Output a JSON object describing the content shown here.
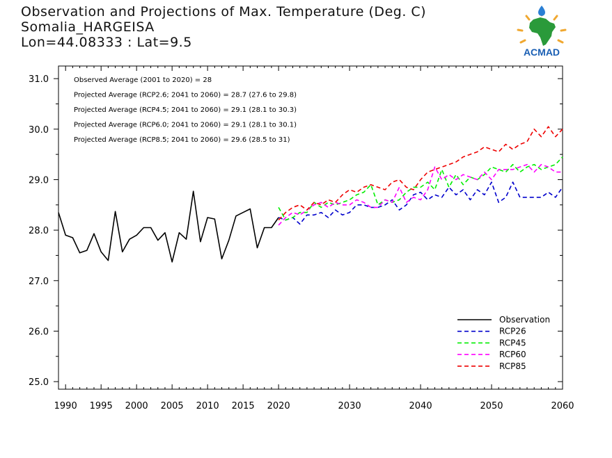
{
  "title": {
    "line1": "Observation and Projections of Max. Temperature (Deg. C)",
    "line2": "Somalia_HARGEISA",
    "line3": "Lon=44.08333 : Lat=9.5"
  },
  "logo": {
    "text": "ACMAD",
    "icon": "africa-map-logo",
    "colors": {
      "africa": "#2a9a3a",
      "sun": "#f0a830",
      "text": "#1a5fb4",
      "drop": "#2a7fd4"
    }
  },
  "annotations": [
    "Observed Average (2001 to 2020) = 28",
    "Projected Average (RCP2.6; 2041 to 2060) = 28.7 (27.6 to 29.8)",
    "Projected Average (RCP4.5; 2041 to 2060) = 29.1 (28.1 to 30.3)",
    "Projected Average (RCP6.0; 2041 to 2060) = 29.1 (28.1 to 30.1)",
    "Projected Average (RCP8.5; 2041 to 2060) = 29.6 (28.5 to 31)"
  ],
  "chart_data": {
    "type": "line",
    "xlim": [
      1989,
      2060
    ],
    "ylim": [
      24.85,
      31.25
    ],
    "x_ticks": [
      {
        "value": 1990,
        "label": "1990"
      },
      {
        "value": 1995,
        "label": "1995"
      },
      {
        "value": 2000,
        "label": "2000"
      },
      {
        "value": 2005,
        "label": "2005"
      },
      {
        "value": 2010,
        "label": "2010"
      },
      {
        "value": 2015,
        "label": "2015"
      },
      {
        "value": 2020,
        "label": "2020"
      },
      {
        "value": 2030,
        "label": "2030"
      },
      {
        "value": 2040,
        "label": "2040"
      },
      {
        "value": 2050,
        "label": "2050"
      },
      {
        "value": 2060,
        "label": "2060"
      }
    ],
    "y_ticks": [
      {
        "value": 25.0,
        "label": "25.0"
      },
      {
        "value": 26.0,
        "label": "26.0"
      },
      {
        "value": 27.0,
        "label": "27.0"
      },
      {
        "value": 28.0,
        "label": "28.0"
      },
      {
        "value": 29.0,
        "label": "29.0"
      },
      {
        "value": 30.0,
        "label": "30.0"
      },
      {
        "value": 31.0,
        "label": "31.0"
      }
    ],
    "legend_position": "bottom-right",
    "series": [
      {
        "name": "Observation",
        "color": "#000000",
        "dashed": false,
        "x": [
          1989,
          1990,
          1991,
          1992,
          1993,
          1994,
          1995,
          1996,
          1997,
          1998,
          1999,
          2000,
          2001,
          2002,
          2003,
          2004,
          2005,
          2006,
          2007,
          2008,
          2009,
          2010,
          2011,
          2012,
          2013,
          2014,
          2015,
          2016,
          2017,
          2018,
          2019,
          2020
        ],
        "y": [
          28.35,
          27.9,
          27.85,
          27.55,
          27.6,
          27.93,
          27.57,
          27.4,
          28.37,
          27.57,
          27.82,
          27.9,
          28.05,
          28.05,
          27.8,
          27.95,
          27.37,
          27.95,
          27.82,
          28.77,
          27.77,
          28.25,
          28.22,
          27.43,
          27.8,
          28.28,
          28.35,
          28.42,
          27.65,
          28.05,
          28.05,
          28.25
        ]
      },
      {
        "name": "RCP26",
        "color": "#0000cc",
        "dashed": true,
        "x": [
          2020,
          2021,
          2022,
          2023,
          2024,
          2025,
          2026,
          2027,
          2028,
          2029,
          2030,
          2031,
          2032,
          2033,
          2034,
          2035,
          2036,
          2037,
          2038,
          2039,
          2040,
          2041,
          2042,
          2043,
          2044,
          2045,
          2046,
          2047,
          2048,
          2049,
          2050,
          2051,
          2052,
          2053,
          2054,
          2055,
          2056,
          2057,
          2058,
          2059,
          2060
        ],
        "y": [
          28.25,
          28.2,
          28.25,
          28.12,
          28.3,
          28.3,
          28.35,
          28.25,
          28.4,
          28.3,
          28.35,
          28.5,
          28.5,
          28.45,
          28.45,
          28.5,
          28.6,
          28.4,
          28.5,
          28.7,
          28.75,
          28.6,
          28.7,
          28.65,
          28.85,
          28.7,
          28.8,
          28.6,
          28.8,
          28.7,
          28.95,
          28.55,
          28.65,
          28.95,
          28.65,
          28.65,
          28.65,
          28.65,
          28.75,
          28.65,
          28.85
        ]
      },
      {
        "name": "RCP45",
        "color": "#00ee00",
        "dashed": true,
        "x": [
          2020,
          2021,
          2022,
          2023,
          2024,
          2025,
          2026,
          2027,
          2028,
          2029,
          2030,
          2031,
          2032,
          2033,
          2034,
          2035,
          2036,
          2037,
          2038,
          2039,
          2040,
          2041,
          2042,
          2043,
          2044,
          2045,
          2046,
          2047,
          2048,
          2049,
          2050,
          2051,
          2052,
          2053,
          2054,
          2055,
          2056,
          2057,
          2058,
          2059,
          2060
        ],
        "y": [
          28.45,
          28.2,
          28.25,
          28.35,
          28.35,
          28.55,
          28.45,
          28.55,
          28.5,
          28.55,
          28.6,
          28.7,
          28.75,
          28.9,
          28.5,
          28.6,
          28.55,
          28.6,
          28.75,
          28.85,
          28.85,
          28.95,
          28.8,
          29.2,
          28.85,
          29.1,
          28.9,
          29.05,
          29.0,
          29.1,
          29.25,
          29.2,
          29.15,
          29.3,
          29.15,
          29.25,
          29.3,
          29.2,
          29.25,
          29.3,
          29.45
        ]
      },
      {
        "name": "RCP60",
        "color": "#ff00ff",
        "dashed": true,
        "x": [
          2020,
          2021,
          2022,
          2023,
          2024,
          2025,
          2026,
          2027,
          2028,
          2029,
          2030,
          2031,
          2032,
          2033,
          2034,
          2035,
          2036,
          2037,
          2038,
          2039,
          2040,
          2041,
          2042,
          2043,
          2044,
          2045,
          2046,
          2047,
          2048,
          2049,
          2050,
          2051,
          2052,
          2053,
          2054,
          2055,
          2056,
          2057,
          2058,
          2059,
          2060
        ],
        "y": [
          28.1,
          28.25,
          28.35,
          28.3,
          28.4,
          28.5,
          28.55,
          28.45,
          28.55,
          28.5,
          28.5,
          28.6,
          28.55,
          28.45,
          28.45,
          28.6,
          28.55,
          28.85,
          28.55,
          28.65,
          28.6,
          28.8,
          29.25,
          29.0,
          29.1,
          29.0,
          29.1,
          29.05,
          29.0,
          29.15,
          29.0,
          29.2,
          29.2,
          29.2,
          29.25,
          29.3,
          29.15,
          29.3,
          29.25,
          29.15,
          29.15
        ]
      },
      {
        "name": "RCP85",
        "color": "#ee0000",
        "dashed": true,
        "x": [
          2020,
          2021,
          2022,
          2023,
          2024,
          2025,
          2026,
          2027,
          2028,
          2029,
          2030,
          2031,
          2032,
          2033,
          2034,
          2035,
          2036,
          2037,
          2038,
          2039,
          2040,
          2041,
          2042,
          2043,
          2044,
          2045,
          2046,
          2047,
          2048,
          2049,
          2050,
          2051,
          2052,
          2053,
          2054,
          2055,
          2056,
          2057,
          2058,
          2059,
          2060
        ],
        "y": [
          28.2,
          28.35,
          28.45,
          28.5,
          28.4,
          28.55,
          28.5,
          28.6,
          28.55,
          28.7,
          28.8,
          28.75,
          28.85,
          28.9,
          28.85,
          28.8,
          28.95,
          29.0,
          28.85,
          28.8,
          29.0,
          29.15,
          29.2,
          29.25,
          29.3,
          29.35,
          29.45,
          29.5,
          29.55,
          29.65,
          29.6,
          29.55,
          29.7,
          29.6,
          29.7,
          29.75,
          30.0,
          29.85,
          30.05,
          29.85,
          30.0
        ]
      }
    ]
  }
}
